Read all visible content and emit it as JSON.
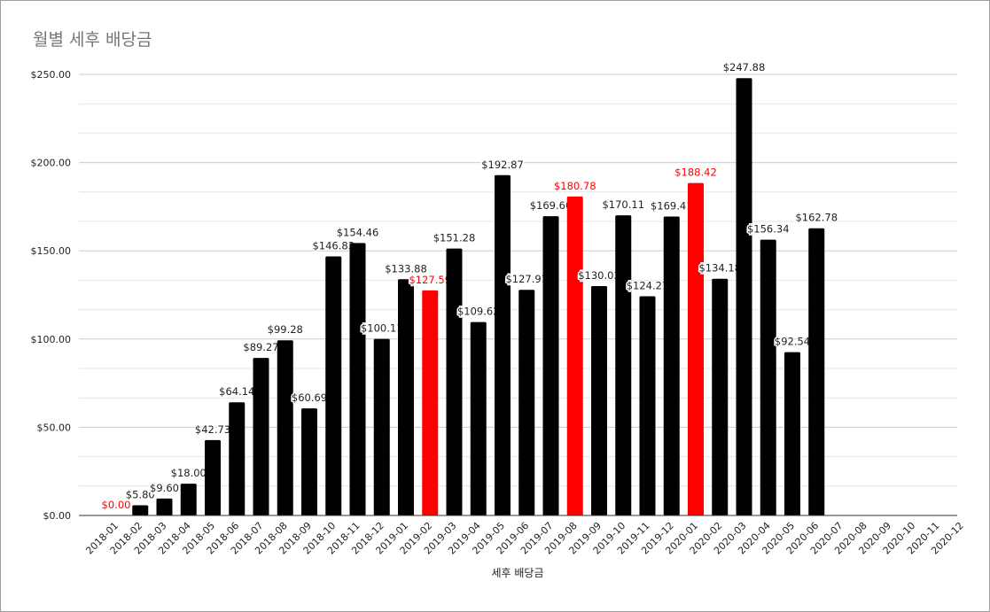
{
  "chart_data": {
    "type": "bar",
    "title": "월별 세후 배당금",
    "xlabel": "세후 배당금",
    "ylabel": "",
    "ylim": [
      0,
      250
    ],
    "yticks": [
      "$0.00",
      "$50.00",
      "$100.00",
      "$150.00",
      "$200.00",
      "$250.00"
    ],
    "ytick_values": [
      0,
      50,
      100,
      150,
      200,
      250
    ],
    "grid": true,
    "colors": {
      "bar": "#000000",
      "highlight": "#ff0000",
      "axis": "#333333",
      "grid": "#cccccc",
      "minor_grid": "#e6e6e6"
    },
    "categories": [
      "2018-01",
      "2018-02",
      "2018-03",
      "2018-04",
      "2018-05",
      "2018-06",
      "2018-07",
      "2018-08",
      "2018-09",
      "2018-10",
      "2018-11",
      "2018-12",
      "2019-01",
      "2019-02",
      "2019-03",
      "2019-04",
      "2019-05",
      "2019-06",
      "2019-07",
      "2019-08",
      "2019-09",
      "2019-10",
      "2019-11",
      "2019-12",
      "2020-01",
      "2020-02",
      "2020-03",
      "2020-04",
      "2020-05",
      "2020-06",
      "2020-07",
      "2020-08",
      "2020-09",
      "2020-10",
      "2020-11",
      "2020-12"
    ],
    "values": [
      0.0,
      5.8,
      9.6,
      18.0,
      42.73,
      64.14,
      89.27,
      99.28,
      60.69,
      146.83,
      154.46,
      100.11,
      133.88,
      127.59,
      151.28,
      109.62,
      192.87,
      127.91,
      169.6,
      180.78,
      130.03,
      170.11,
      124.27,
      169.41,
      188.42,
      134.18,
      247.88,
      156.34,
      92.54,
      162.78,
      null,
      null,
      null,
      null,
      null,
      null
    ],
    "labels": [
      "$0.00",
      "$5.80",
      "$9.60",
      "$18.00",
      "$42.73",
      "$64.14",
      "$89.27",
      "$99.28",
      "$60.69",
      "$146.83",
      "$154.46",
      "$100.11",
      "$133.88",
      "$127.59",
      "$151.28",
      "$109.62",
      "$192.87",
      "$127.91",
      "$169.60",
      "$180.78",
      "$130.03",
      "$170.11",
      "$124.27",
      "$169.41",
      "$188.42",
      "$134.18",
      "$247.88",
      "$156.34",
      "$92.54",
      "$162.78",
      "",
      "",
      "",
      "",
      "",
      ""
    ],
    "highlighted": [
      "2018-01",
      "2019-02",
      "2019-08",
      "2020-01"
    ]
  }
}
